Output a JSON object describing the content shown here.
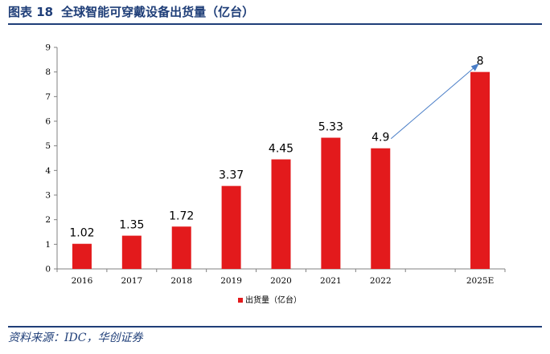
{
  "figure": {
    "label": "图表 18",
    "title": "全球智能可穿戴设备出货量（亿台）",
    "source": "资料来源：IDC，华创证券"
  },
  "colors": {
    "bar": "#e31a1c",
    "heading": "#1f3e78",
    "arrow": "#4a7ec7"
  },
  "chart_data": {
    "type": "bar",
    "categories": [
      "2016",
      "2017",
      "2018",
      "2019",
      "2020",
      "2021",
      "2022",
      "",
      "2025E"
    ],
    "series": [
      {
        "name": "出货量（亿台）",
        "values": [
          1.02,
          1.35,
          1.72,
          3.37,
          4.45,
          5.33,
          4.9,
          null,
          8
        ]
      }
    ],
    "data_labels": [
      "1.02",
      "1.35",
      "1.72",
      "3.37",
      "4.45",
      "5.33",
      "4.9",
      "",
      "8"
    ],
    "yticks": [
      0,
      1,
      2,
      3,
      4,
      5,
      6,
      7,
      8,
      9
    ],
    "ylim": [
      0,
      9
    ],
    "legend": {
      "label": "出货量（亿台）",
      "position": "bottom"
    },
    "annotations": [
      {
        "type": "arrow",
        "from": "2022",
        "to": "2025E"
      }
    ],
    "grid": false
  }
}
